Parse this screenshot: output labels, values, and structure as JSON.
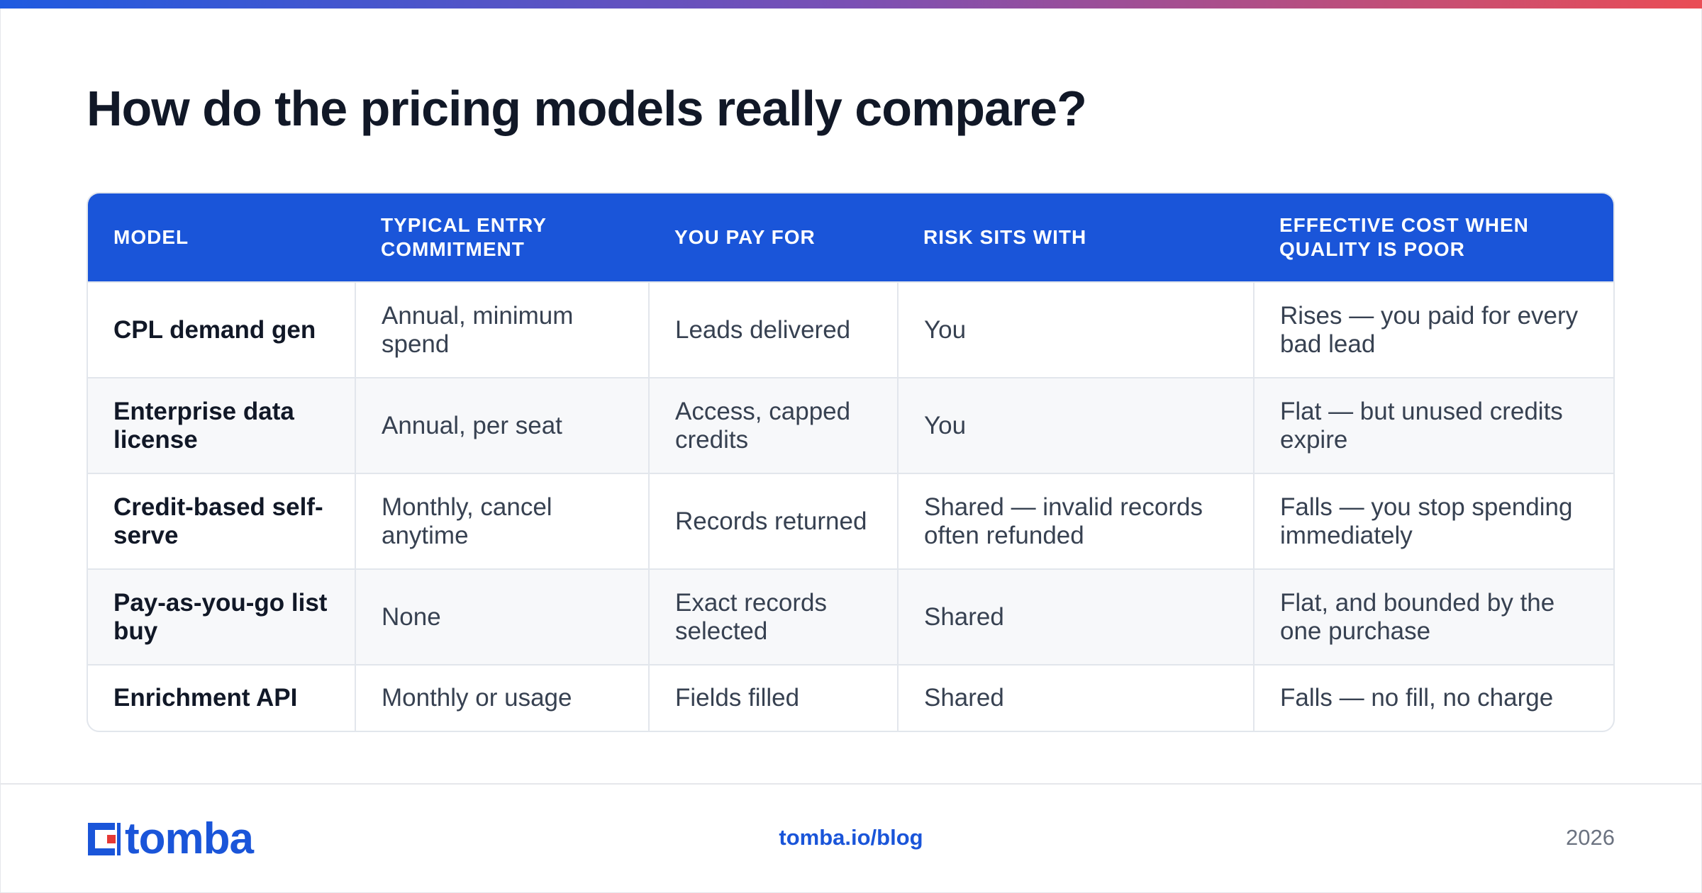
{
  "title": "How do the pricing models really compare?",
  "table": {
    "headers": [
      "MODEL",
      "TYPICAL ENTRY COMMITMENT",
      "YOU PAY FOR",
      "RISK SITS WITH",
      "EFFECTIVE COST WHEN QUALITY IS POOR"
    ],
    "rows": [
      [
        "CPL demand gen",
        "Annual, minimum spend",
        "Leads delivered",
        "You",
        "Rises — you paid for every bad lead"
      ],
      [
        "Enterprise data license",
        "Annual, per seat",
        "Access, capped credits",
        "You",
        "Flat — but unused credits expire"
      ],
      [
        "Credit-based self-serve",
        "Monthly, cancel anytime",
        "Records returned",
        "Shared — invalid records often refunded",
        "Falls — you stop spending immediately"
      ],
      [
        "Pay-as-you-go list buy",
        "None",
        "Exact records selected",
        "Shared",
        "Flat, and bounded by the one purchase"
      ],
      [
        "Enrichment API",
        "Monthly or usage",
        "Fields filled",
        "Shared",
        "Falls — no fill, no charge"
      ]
    ]
  },
  "footer": {
    "logo_text": "tomba",
    "logo_icon": "tomba-logo-mark-icon",
    "link": "tomba.io/blog",
    "year": "2026"
  },
  "colors": {
    "accent": "#1a55d9",
    "gradient_start": "#1f5be0",
    "gradient_end": "#ea4d55",
    "logo_red": "#e53935"
  }
}
